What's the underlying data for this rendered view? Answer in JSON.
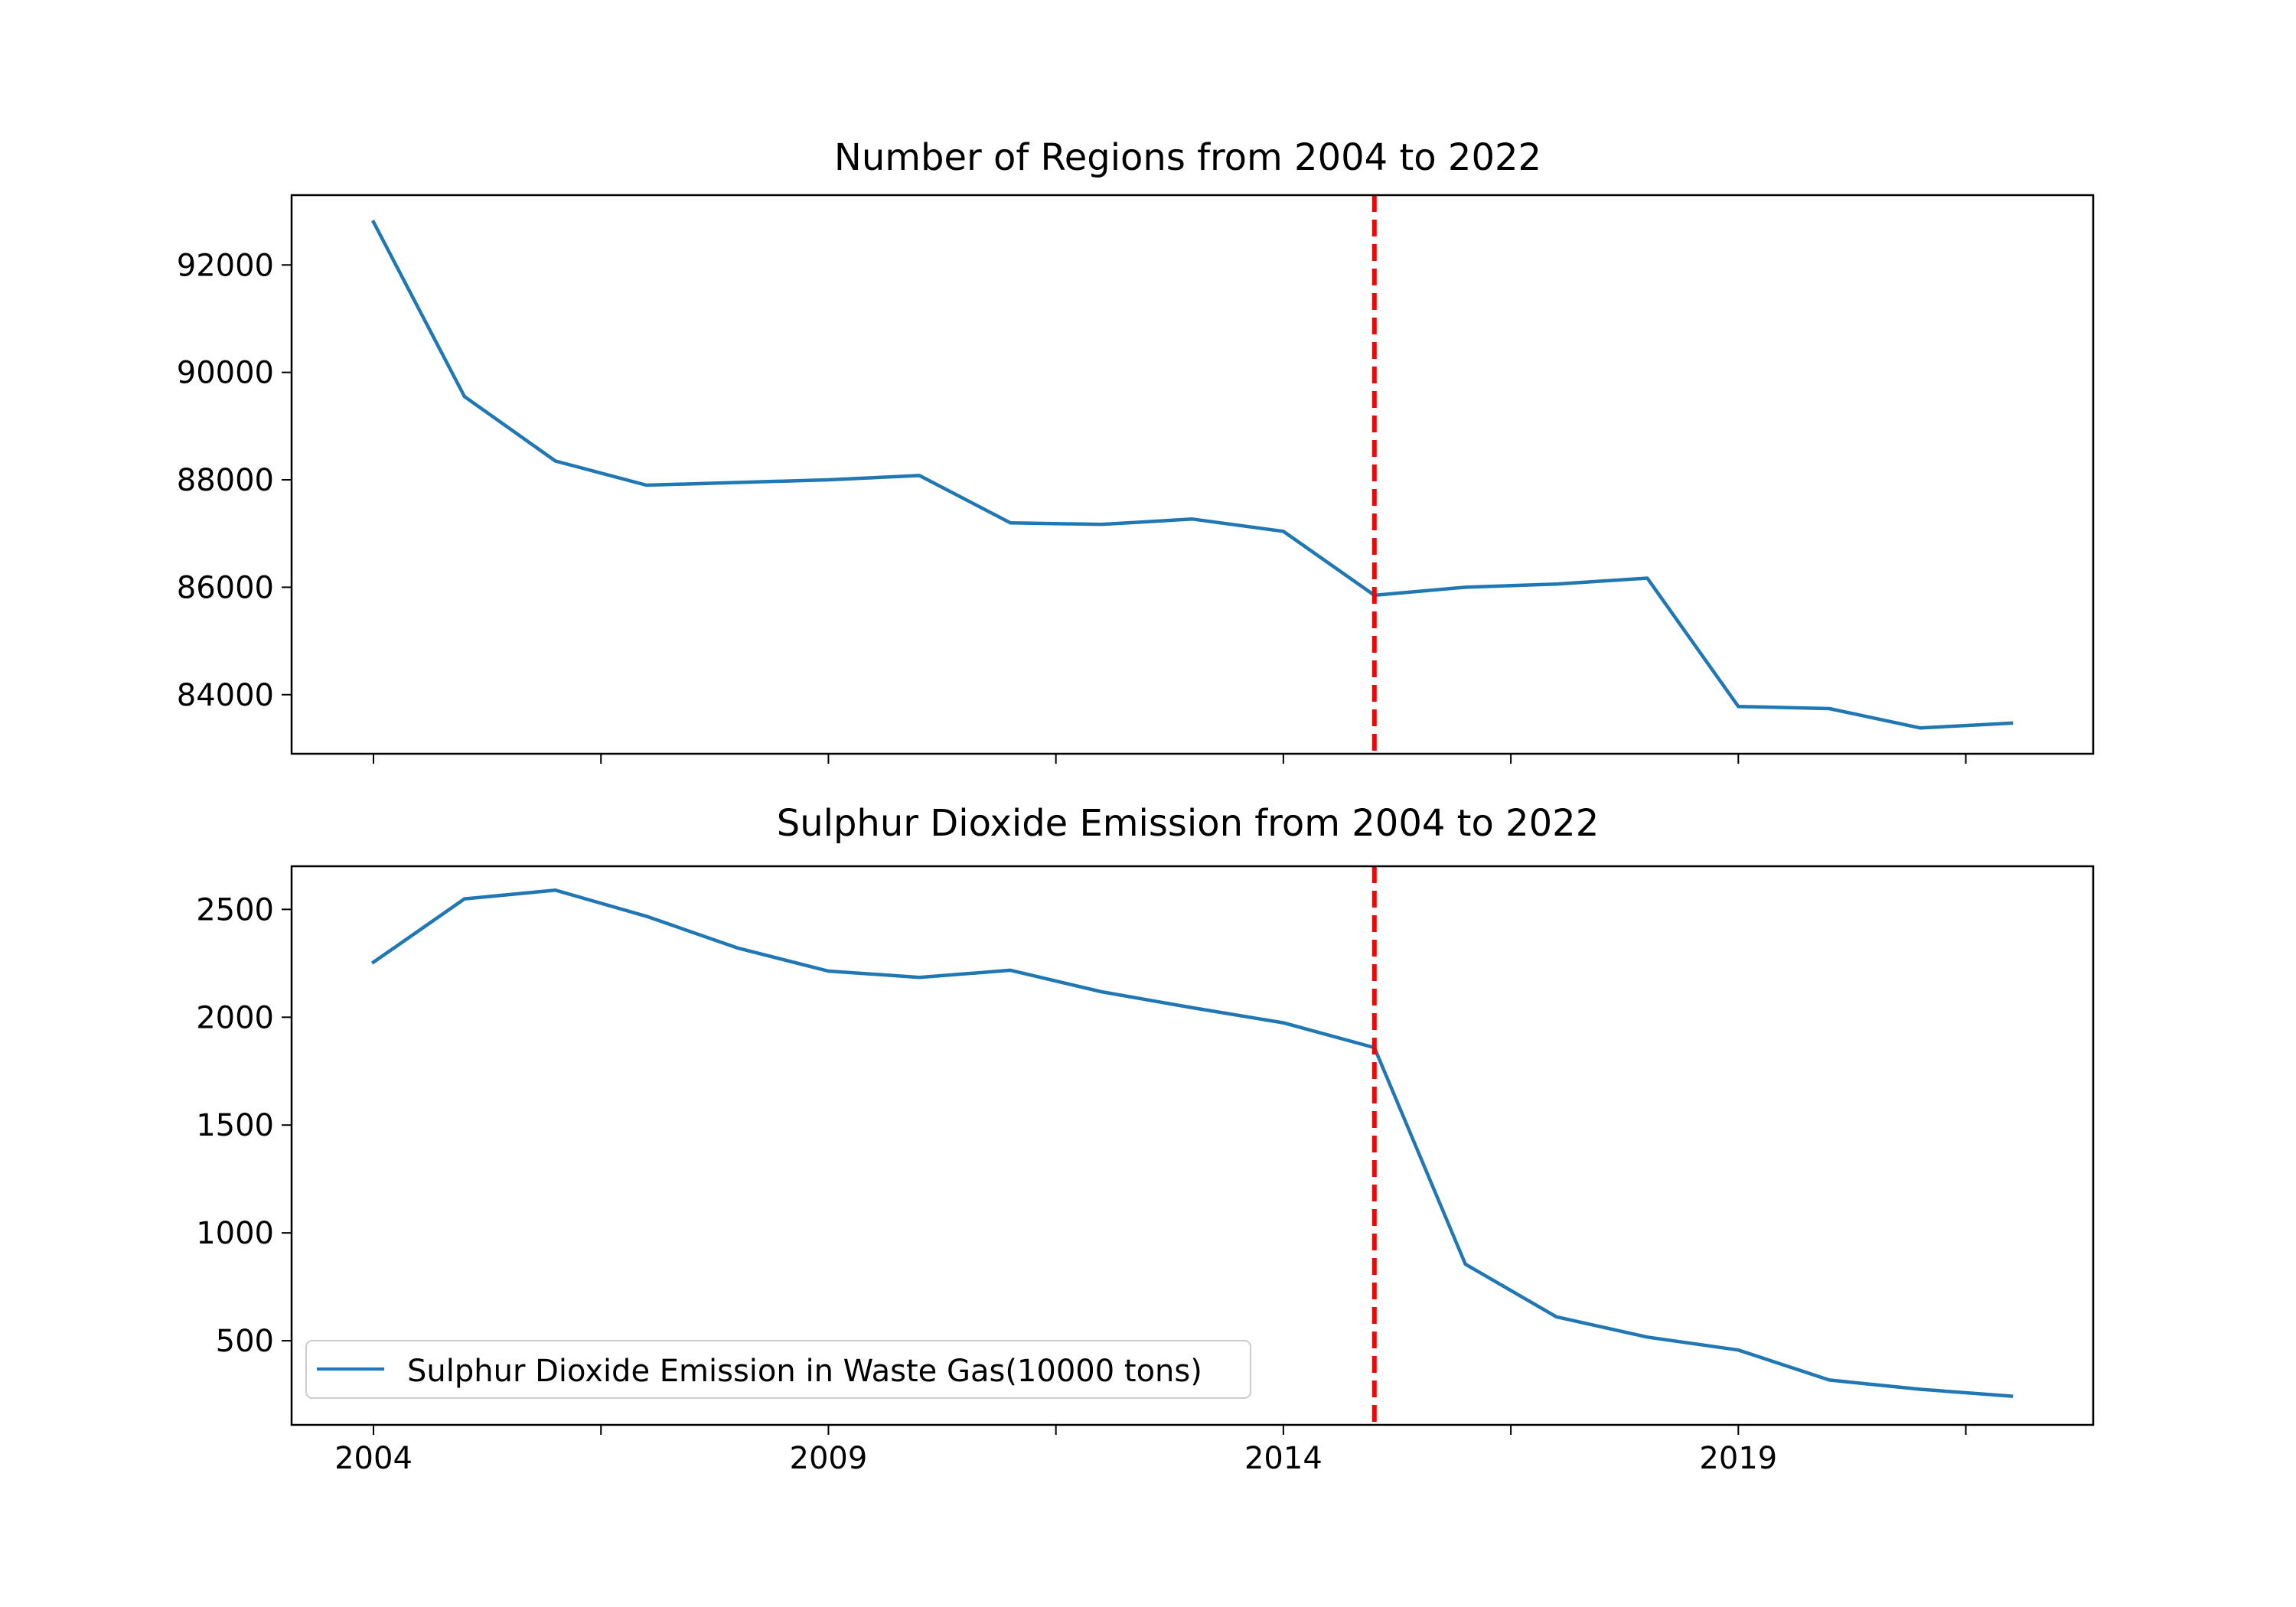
{
  "chart_data": [
    {
      "type": "line",
      "title": "Number of Regions from 2004 to 2022",
      "xlabel": "",
      "ylabel": "",
      "x": [
        2004,
        2005,
        2006,
        2007,
        2008,
        2009,
        2010,
        2011,
        2012,
        2013,
        2014,
        2015,
        2016,
        2017,
        2018,
        2019,
        2020,
        2021,
        2022
      ],
      "series": [
        {
          "name": "",
          "color": "#1f77b4",
          "values": [
            92800,
            89550,
            88350,
            87900,
            87950,
            88000,
            88080,
            87200,
            87170,
            87270,
            87040,
            85850,
            86000,
            86060,
            86170,
            83780,
            83740,
            83380,
            83470
          ]
        }
      ],
      "ylim": [
        82900,
        93300
      ],
      "yticks": [
        84000,
        86000,
        88000,
        90000,
        92000
      ],
      "xlim": [
        2003.1,
        2022.9
      ],
      "xticks": [
        2004,
        2006.5,
        2009,
        2011.5,
        2014,
        2016.5,
        2019,
        2021.5
      ],
      "xtick_labels_shown": false,
      "vline": {
        "x": 2015,
        "color": "#ff0000",
        "style": "dashed"
      },
      "grid": false,
      "legend": null
    },
    {
      "type": "line",
      "title": "Sulphur Dioxide Emission from 2004 to 2022",
      "xlabel": "",
      "ylabel": "",
      "x": [
        2004,
        2005,
        2006,
        2007,
        2008,
        2009,
        2010,
        2011,
        2012,
        2013,
        2014,
        2015,
        2016,
        2017,
        2018,
        2019,
        2020,
        2021,
        2022
      ],
      "series": [
        {
          "name": "Sulphur Dioxide Emission in Waste Gas(10000 tons)",
          "color": "#1f77b4",
          "values": [
            2255,
            2549,
            2589,
            2468,
            2321,
            2214,
            2185,
            2218,
            2118,
            2044,
            1974,
            1859,
            855,
            611,
            517,
            457,
            318,
            275,
            243
          ]
        }
      ],
      "ylim": [
        110,
        2700
      ],
      "yticks": [
        500,
        1000,
        1500,
        2000,
        2500
      ],
      "xlim": [
        2003.1,
        2022.9
      ],
      "xticks": [
        2004,
        2006.5,
        2009,
        2011.5,
        2014,
        2016.5,
        2019,
        2021.5
      ],
      "xtick_labels": [
        "2004",
        "",
        "2009",
        "",
        "2014",
        "",
        "2019",
        ""
      ],
      "vline": {
        "x": 2015,
        "color": "#ff0000",
        "style": "dashed"
      },
      "grid": false,
      "legend": "lower-left"
    }
  ]
}
